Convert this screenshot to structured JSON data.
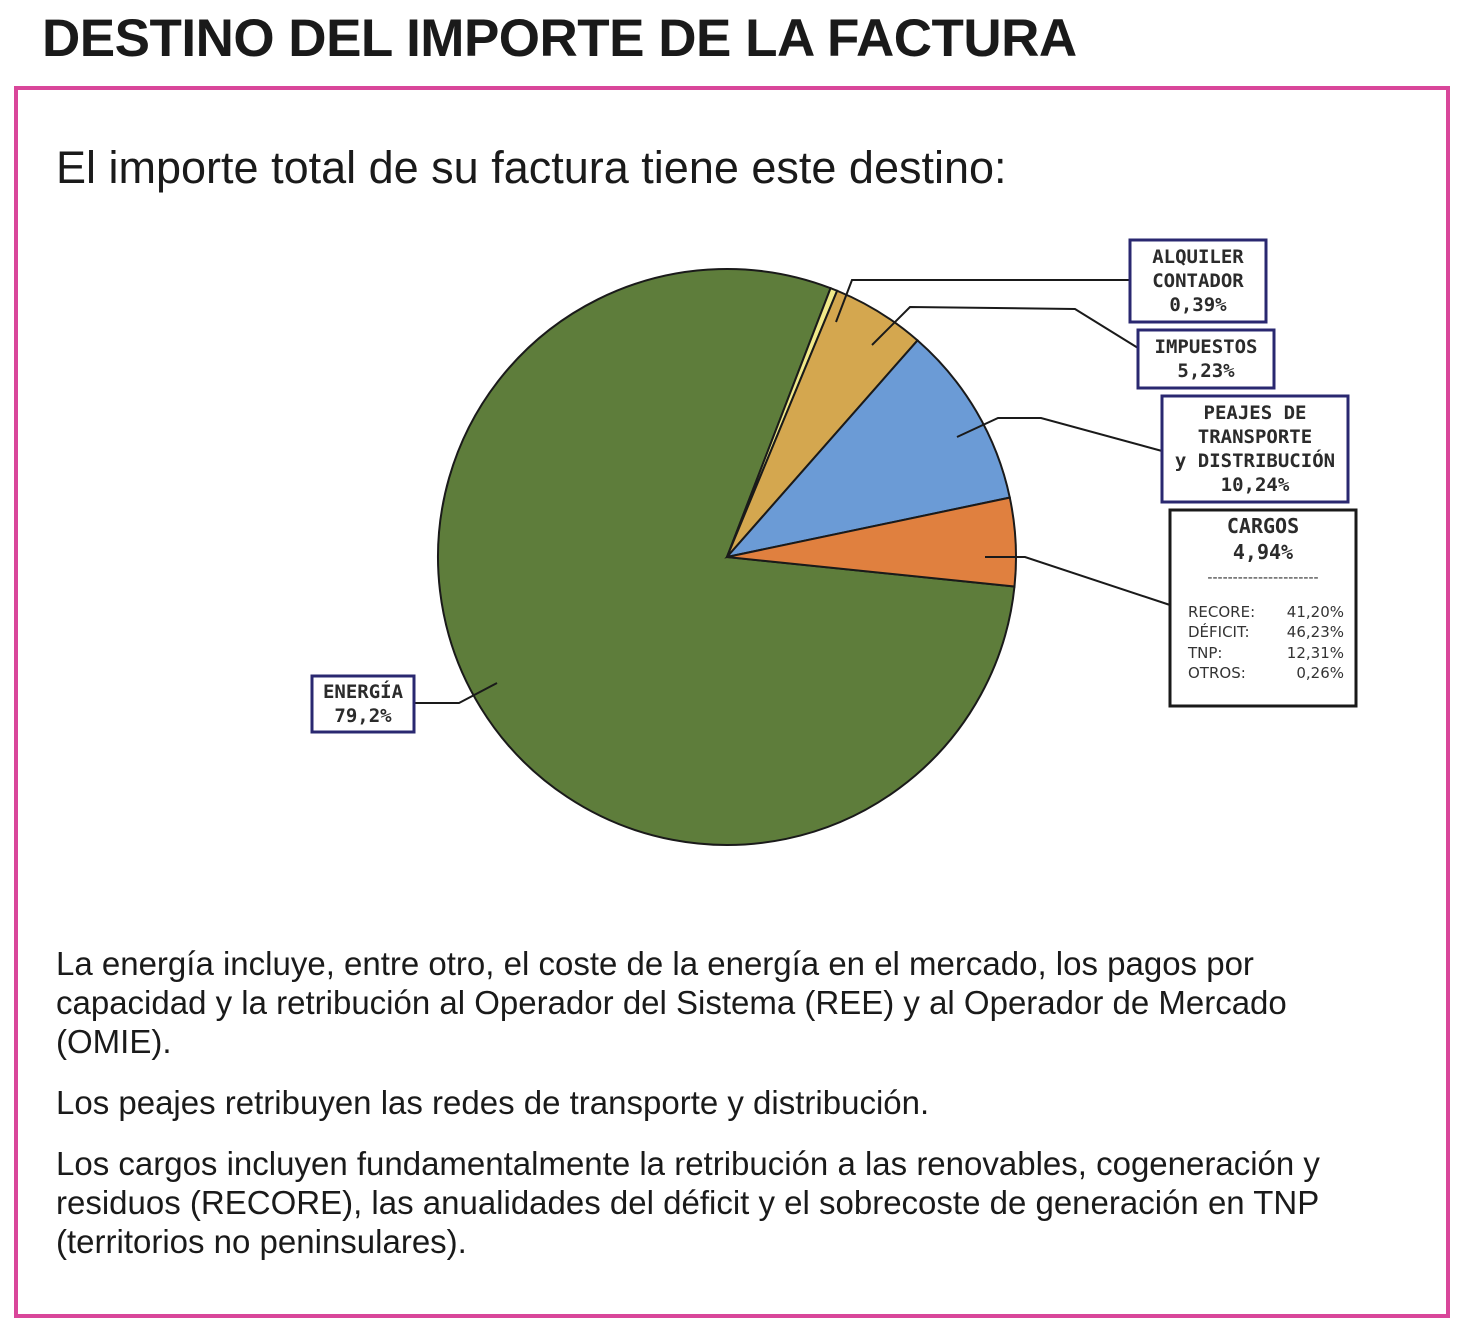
{
  "header": {
    "title": "DESTINO DEL IMPORTE DE LA FACTURA"
  },
  "intro": "El importe total de su factura tiene este destino:",
  "colors": {
    "frame": "#d9469a",
    "energia": "#5e7d3b",
    "alquiler": "#f1e98a",
    "impuestos": "#d4a74f",
    "peajes": "#6b9bd6",
    "cargos": "#e0803f"
  },
  "chart_data": {
    "type": "pie",
    "slices": [
      {
        "key": "energia",
        "lines": [
          "ENERGÍA",
          "79,2%"
        ],
        "value": 79.2,
        "color": "#5e7d3b"
      },
      {
        "key": "alquiler",
        "lines": [
          "ALQUILER",
          "CONTADOR",
          "0,39%"
        ],
        "value": 0.39,
        "color": "#f1e98a"
      },
      {
        "key": "impuestos",
        "lines": [
          "IMPUESTOS",
          "5,23%"
        ],
        "value": 5.23,
        "color": "#d4a74f"
      },
      {
        "key": "peajes",
        "lines": [
          "PEAJES DE",
          "TRANSPORTE",
          "y DISTRIBUCIÓN",
          "10,24%"
        ],
        "value": 10.24,
        "color": "#6b9bd6"
      },
      {
        "key": "cargos",
        "lines": [
          "CARGOS",
          "4,94%"
        ],
        "value": 4.94,
        "color": "#e0803f"
      }
    ],
    "cargos_breakdown": {
      "divider": "----------------------",
      "items": [
        {
          "label": "RECORE:",
          "value": "41,20%"
        },
        {
          "label": "DÉFICIT:",
          "value": "46,23%"
        },
        {
          "label": "TNP:",
          "value": "12,31%"
        },
        {
          "label": "OTROS:",
          "value": "0,26%"
        }
      ]
    }
  },
  "paragraphs": [
    "La energía incluye, entre otro, el coste de la energía en el mercado, los pagos por capacidad y la retribución al Operador del Sistema (REE) y al Operador de Mercado (OMIE).",
    "Los peajes retribuyen las redes de transporte y distribución.",
    "Los cargos incluyen fundamentalmente la retribución a las renovables, cogeneración y residuos (RECORE), las anualidades del déficit y el sobrecoste de generación en TNP (territorios no peninsulares)."
  ]
}
